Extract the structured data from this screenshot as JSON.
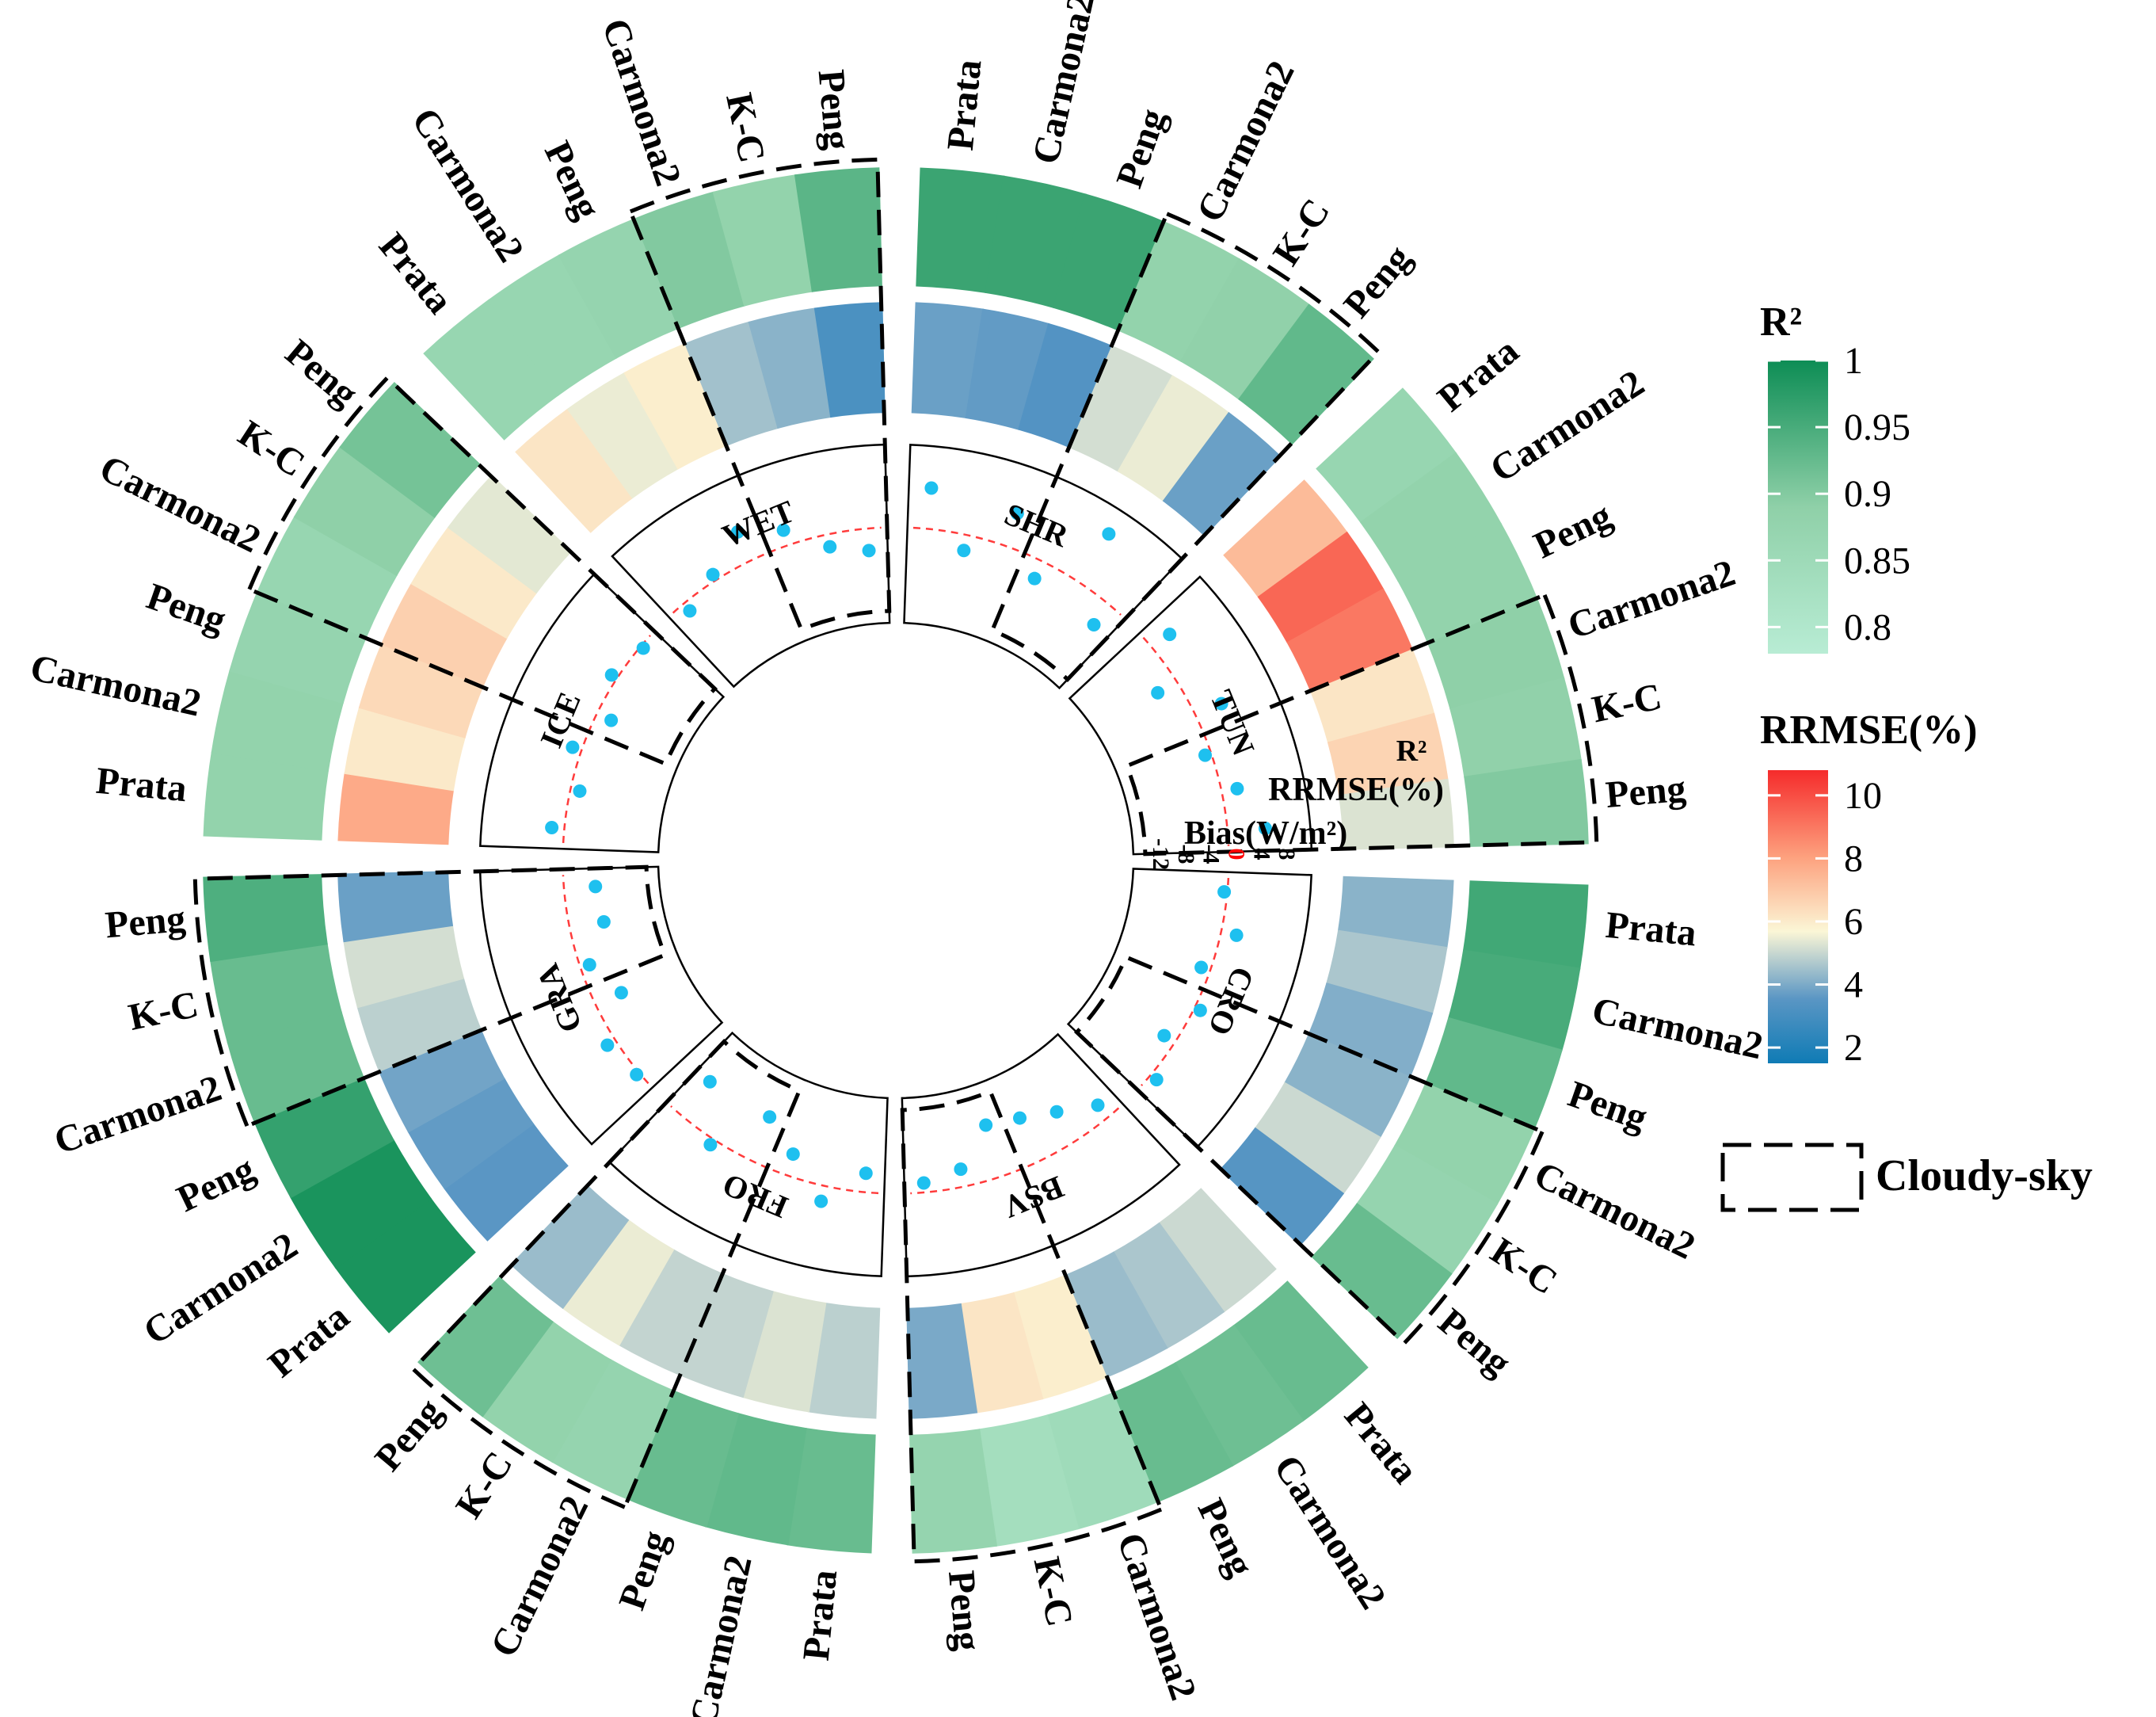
{
  "chart_data": {
    "type": "circular-heatmap",
    "title": "",
    "sectors": [
      {
        "name": "CRO",
        "algorithms": [
          "Prata",
          "Carmona2",
          "Peng",
          "Carmona2",
          "K-C",
          "Peng"
        ],
        "cloudy_sky": [
          false,
          false,
          false,
          true,
          true,
          true
        ],
        "r2": [
          0.96,
          0.955,
          0.935,
          0.89,
          0.885,
          0.93
        ],
        "rrmse": [
          4.6,
          5.0,
          4.5,
          4.6,
          5.4,
          3.9
        ],
        "bias": [
          -0.5,
          2.5,
          -1.5,
          1.0,
          -2.0,
          1.2
        ]
      },
      {
        "name": "BSV",
        "algorithms": [
          "Prata",
          "Carmona2",
          "Peng",
          "Carmona2",
          "K-C",
          "Peng"
        ],
        "cloudy_sky": [
          false,
          false,
          false,
          true,
          true,
          true
        ],
        "r2": [
          0.93,
          0.925,
          0.93,
          0.86,
          0.85,
          0.885
        ],
        "rrmse": [
          5.4,
          5.0,
          4.8,
          6.2,
          6.4,
          4.4
        ],
        "bias": [
          -2.5,
          -5.5,
          -7.5,
          -8.5,
          -2.8,
          -1.5
        ]
      },
      {
        "name": "FRO",
        "algorithms": [
          "Prata",
          "Carmona2",
          "Peng",
          "Carmona2",
          "K-C",
          "Peng"
        ],
        "cloudy_sky": [
          false,
          false,
          false,
          true,
          true,
          true
        ],
        "r2": [
          0.93,
          0.935,
          0.93,
          0.885,
          0.89,
          0.925
        ],
        "rrmse": [
          5.2,
          5.6,
          5.3,
          5.3,
          5.8,
          4.8
        ],
        "bias": [
          -3.0,
          2.5,
          -3.5,
          -7.5,
          1.0,
          -7.0
        ]
      },
      {
        "name": "GRA",
        "algorithms": [
          "Prata",
          "Carmona2",
          "Peng",
          "Carmona2",
          "K-C",
          "Peng"
        ],
        "cloudy_sky": [
          false,
          false,
          false,
          true,
          true,
          true
        ],
        "r2": [
          0.99,
          0.99,
          0.97,
          0.93,
          0.93,
          0.95
        ],
        "rrmse": [
          4.0,
          4.1,
          4.3,
          5.2,
          5.5,
          4.2
        ],
        "bias": [
          0.5,
          1.5,
          -4.5,
          -1.5,
          -5.5,
          -5.0
        ]
      },
      {
        "name": "ICE",
        "algorithms": [
          "Prata",
          "Carmona2",
          "Peng",
          "Carmona2",
          "K-C",
          "Peng"
        ],
        "cloudy_sky": [
          false,
          false,
          false,
          true,
          true,
          true
        ],
        "r2": [
          0.89,
          0.89,
          0.885,
          0.88,
          0.9,
          0.92
        ],
        "rrmse": [
          7.8,
          6.3,
          6.7,
          6.9,
          6.3,
          5.7
        ],
        "bias": [
          2.0,
          -1.5,
          1.5,
          -2.5,
          1.0,
          -0.5
        ]
      },
      {
        "name": "WET",
        "algorithms": [
          "Prata",
          "Carmona2",
          "Peng",
          "Carmona2",
          "K-C",
          "Peng"
        ],
        "cloudy_sky": [
          false,
          false,
          false,
          true,
          true,
          true
        ],
        "r2": [
          0.88,
          0.88,
          0.885,
          0.91,
          0.89,
          0.94
        ],
        "rrmse": [
          6.4,
          5.8,
          6.2,
          4.9,
          4.6,
          3.6
        ],
        "bias": [
          -1.5,
          1.0,
          5.0,
          2.5,
          -2.0,
          -3.5
        ]
      },
      {
        "name": "SHR",
        "algorithms": [
          "Prata",
          "Carmona2",
          "Peng",
          "Carmona2",
          "K-C",
          "Peng"
        ],
        "cloudy_sky": [
          false,
          false,
          false,
          true,
          true,
          true
        ],
        "r2": [
          0.965,
          0.965,
          0.965,
          0.89,
          0.895,
          0.935
        ],
        "rrmse": [
          4.2,
          4.1,
          3.8,
          5.5,
          5.8,
          4.2
        ],
        "bias": [
          6.5,
          -2.5,
          5.5,
          -3.0,
          9.0,
          -4.0
        ]
      },
      {
        "name": "TUN",
        "algorithms": [
          "Prata",
          "Carmona2",
          "Peng",
          "Carmona2",
          "K-C",
          "Peng"
        ],
        "cloudy_sky": [
          false,
          false,
          false,
          true,
          true,
          true
        ],
        "r2": [
          0.88,
          0.89,
          0.89,
          0.9,
          0.895,
          0.91
        ],
        "rrmse": [
          7.4,
          9.0,
          8.7,
          6.4,
          6.8,
          5.6
        ],
        "bias": [
          3.5,
          -3.5,
          4.5,
          -1.0,
          2.5,
          6.0
        ]
      }
    ],
    "track_labels": {
      "r2": "R²",
      "rrmse": "RRMSE(%)",
      "bias": "Bias(W/m²)"
    },
    "bias_ticks": [
      "-12",
      "-8",
      "-4",
      "0",
      "4",
      "8"
    ],
    "bias_range": [
      -12,
      10
    ],
    "legend": {
      "r2": {
        "title": "R²",
        "ticks": [
          "1",
          "0.95",
          "0.9",
          "0.85",
          "0.8"
        ],
        "range": [
          0.78,
          1.0
        ]
      },
      "rrmse": {
        "title": "RRMSE(%)",
        "ticks": [
          "10",
          "8",
          "6",
          "4",
          "2"
        ],
        "range": [
          1.5,
          10.8
        ]
      },
      "cloudy_label": "Cloudy-sky"
    }
  },
  "colors": {
    "r2_low": "#b8ecd4",
    "r2_mid": "#8fd0a8",
    "r2_high": "#0d8d55",
    "rr_low": "#0f7bb5",
    "rr_4": "#5a96c4",
    "rr_mid": "#fbf6d6",
    "rr_8": "#fda27f",
    "rr_high": "#f52b2b",
    "point": "#1ec0ef",
    "zero_line": "#ff3b3b",
    "zero_tick": "#ff0000"
  }
}
